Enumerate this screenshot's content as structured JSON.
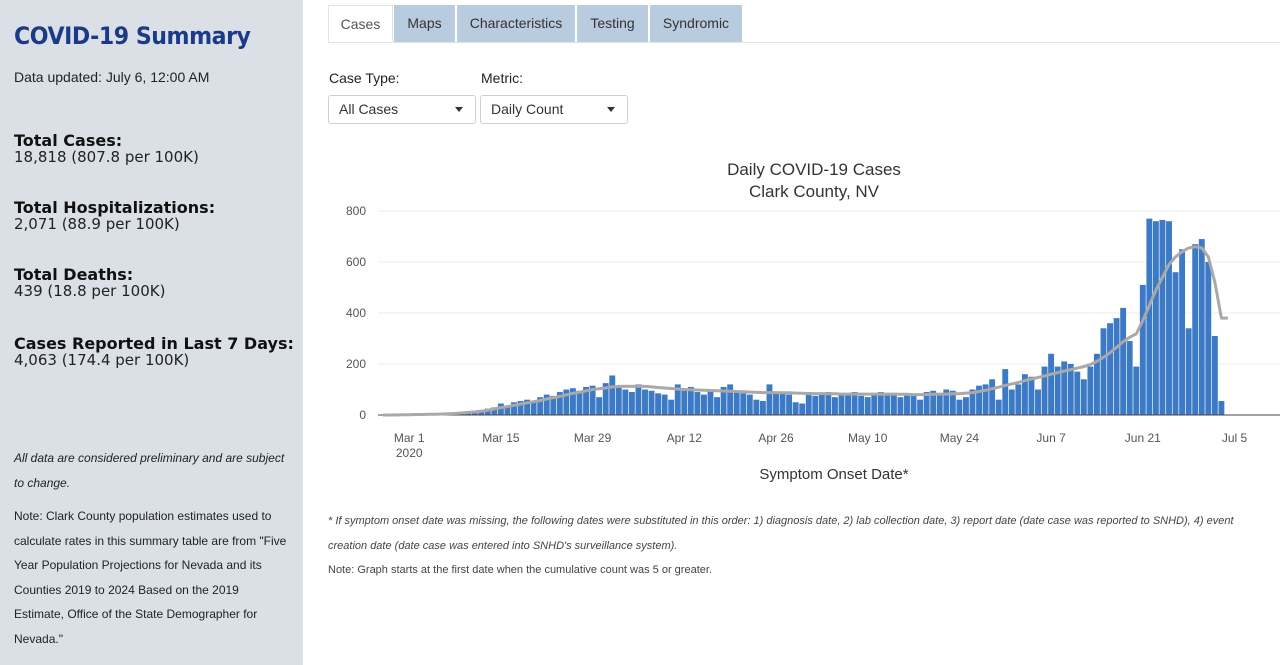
{
  "sidebar": {
    "title": "COVID-19 Summary",
    "updated": "Data updated: July 6, 12:00 AM",
    "stats": [
      {
        "label": "Total Cases:",
        "value": "18,818 (807.8 per 100K)"
      },
      {
        "label": "Total Hospitalizations:",
        "value": "2,071 (88.9 per 100K)"
      },
      {
        "label": "Total Deaths:",
        "value": "439 (18.8 per 100K)"
      },
      {
        "label": "Cases Reported in Last 7 Days:",
        "value": "4,063 (174.4 per 100K)"
      }
    ],
    "note_preliminary": "All data are considered preliminary and are subject to change.",
    "note_population": "Note: Clark County population estimates used to calculate rates in this summary table are from \"Five Year Population Projections for Nevada and its Counties 2019 to 2024 Based on the 2019 Estimate, Office of the State Demographer for Nevada.\""
  },
  "tabs": [
    {
      "label": "Cases",
      "active": true
    },
    {
      "label": "Maps",
      "active": false
    },
    {
      "label": "Characteristics",
      "active": false
    },
    {
      "label": "Testing",
      "active": false
    },
    {
      "label": "Syndromic",
      "active": false
    }
  ],
  "controls": {
    "case_type_label": "Case Type:",
    "case_type_value": "All Cases",
    "metric_label": "Metric:",
    "metric_value": "Daily Count"
  },
  "chart_data": {
    "type": "bar",
    "title": "Daily COVID-19 Cases",
    "subtitle": "Clark County, NV",
    "xlabel": "Symptom Onset Date*",
    "ylabel": "",
    "ylim": [
      0,
      800
    ],
    "yticks": [
      0,
      200,
      400,
      600,
      800
    ],
    "x_start": "2020-02-26",
    "xticks": [
      {
        "day": 4,
        "label": "Mar 1",
        "sublabel": "2020"
      },
      {
        "day": 18,
        "label": "Mar 15"
      },
      {
        "day": 32,
        "label": "Mar 29"
      },
      {
        "day": 46,
        "label": "Apr 12"
      },
      {
        "day": 60,
        "label": "Apr 26"
      },
      {
        "day": 74,
        "label": "May 10"
      },
      {
        "day": 88,
        "label": "May 24"
      },
      {
        "day": 102,
        "label": "Jun 7"
      },
      {
        "day": 116,
        "label": "Jun 21"
      },
      {
        "day": 130,
        "label": "Jul 5"
      }
    ],
    "grid": true,
    "bar_color": "#3d7ac6",
    "line_color": "#a9a9a9",
    "series": [
      {
        "values": [
          0,
          0,
          1,
          2,
          1,
          2,
          3,
          4,
          4,
          5,
          6,
          8,
          9,
          12,
          15,
          20,
          25,
          30,
          45,
          35,
          50,
          55,
          60,
          55,
          70,
          80,
          75,
          90,
          100,
          105,
          95,
          110,
          115,
          70,
          125,
          155,
          110,
          100,
          90,
          120,
          100,
          95,
          85,
          80,
          60,
          120,
          95,
          110,
          90,
          80,
          95,
          70,
          110,
          120,
          90,
          85,
          80,
          60,
          55,
          120,
          90,
          85,
          80,
          50,
          45,
          90,
          75,
          80,
          90,
          70,
          85,
          80,
          90,
          75,
          70,
          85,
          90,
          80,
          85,
          70,
          85,
          75,
          60,
          90,
          95,
          80,
          100,
          95,
          60,
          70,
          100,
          115,
          120,
          140,
          60,
          180,
          100,
          120,
          160,
          150,
          100,
          190,
          240,
          190,
          210,
          200,
          170,
          140,
          190,
          240,
          340,
          360,
          380,
          420,
          290,
          190,
          510,
          770,
          760,
          765,
          760,
          560,
          650,
          340,
          670,
          690,
          600,
          310,
          55,
          0
        ]
      },
      {
        "type": "line",
        "values": [
          0,
          0,
          0,
          1,
          1,
          2,
          2,
          3,
          3,
          4,
          5,
          6,
          8,
          10,
          12,
          15,
          19,
          24,
          29,
          33,
          38,
          43,
          48,
          52,
          57,
          63,
          68,
          73,
          79,
          85,
          89,
          95,
          100,
          103,
          106,
          110,
          112,
          113,
          112,
          113,
          112,
          110,
          108,
          106,
          104,
          102,
          100,
          99,
          98,
          97,
          96,
          95,
          94,
          93,
          92,
          91,
          90,
          89,
          88,
          88,
          88,
          87,
          87,
          86,
          85,
          84,
          84,
          84,
          83,
          83,
          82,
          82,
          82,
          82,
          82,
          82,
          82,
          82,
          82,
          81,
          81,
          80,
          80,
          80,
          81,
          82,
          82,
          83,
          84,
          86,
          88,
          92,
          97,
          103,
          109,
          116,
          122,
          128,
          135,
          141,
          147,
          153,
          160,
          166,
          172,
          178,
          184,
          190,
          198,
          210,
          226,
          244,
          265,
          288,
          305,
          318,
          370,
          430,
          490,
          540,
          590,
          620,
          640,
          655,
          660,
          655,
          620,
          520,
          380,
          380
        ]
      }
    ]
  }
}
